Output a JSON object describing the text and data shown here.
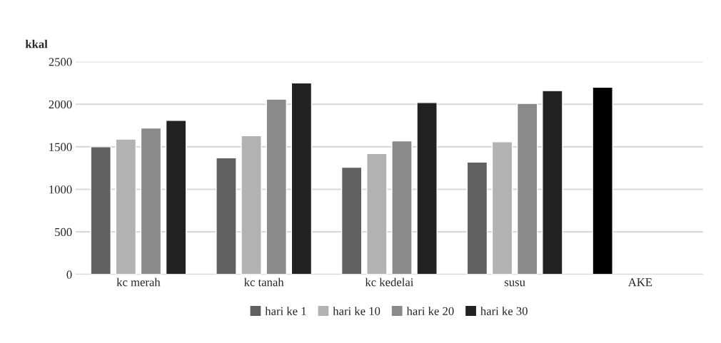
{
  "chart_data": {
    "type": "bar",
    "ylabel": "kkal",
    "categories": [
      "kc merah",
      "kc tanah",
      "kc kedelai",
      "susu",
      "AKE"
    ],
    "series": [
      {
        "name": "hari ke 1",
        "color": "#606060",
        "colors": [
          "#606060",
          "#606060",
          "#606060",
          "#606060",
          "#000000"
        ],
        "values": [
          1500,
          1370,
          1260,
          1320,
          2200
        ]
      },
      {
        "name": "hari ke 10",
        "color": "#b2b2b2",
        "values": [
          1590,
          1630,
          1420,
          1560,
          null
        ]
      },
      {
        "name": "hari ke 20",
        "color": "#8a8a8a",
        "values": [
          1720,
          2060,
          1570,
          2010,
          null
        ]
      },
      {
        "name": "hari ke 30",
        "color": "#222222",
        "values": [
          1810,
          2250,
          2020,
          2160,
          null
        ]
      }
    ],
    "ylim": [
      0,
      2500
    ],
    "yticks": [
      0,
      500,
      1000,
      1500,
      2000,
      2500
    ],
    "grid": "y",
    "legend": "bottom"
  }
}
